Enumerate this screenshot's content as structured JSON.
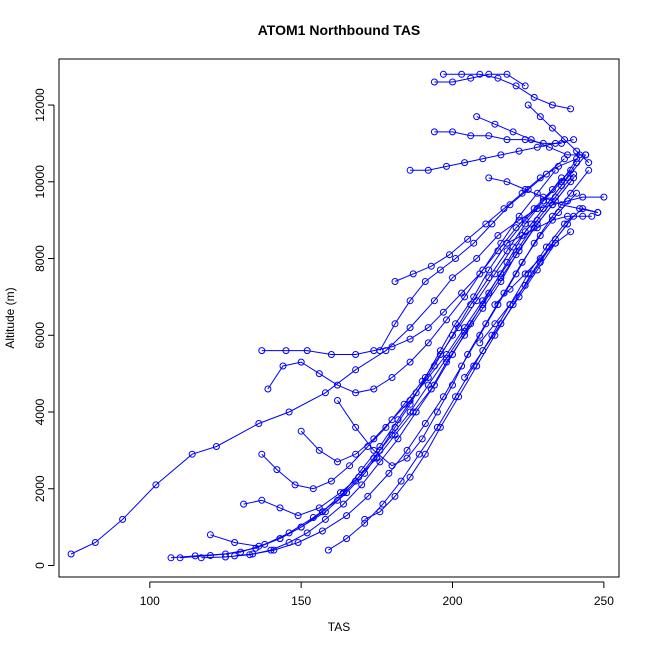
{
  "chart_data": {
    "type": "line",
    "title": "ATOM1 Northbound TAS",
    "xlabel": "TAS",
    "ylabel": "Altitude (m)",
    "xlim": [
      70,
      255
    ],
    "ylim": [
      -300,
      13200
    ],
    "x_ticks": [
      100,
      150,
      200,
      250
    ],
    "y_ticks": [
      0,
      2000,
      4000,
      6000,
      8000,
      10000,
      12000
    ],
    "grid": false,
    "legend": "none",
    "markers": "open-circle",
    "colors": {
      "series": "#0000ff",
      "axis": "#000000"
    },
    "series": [
      {
        "x": [
          74,
          82,
          91,
          102,
          114,
          122,
          136,
          146,
          158,
          168,
          178,
          186,
          194,
          200,
          208,
          215,
          222,
          228,
          233,
          238,
          243,
          250
        ],
        "y": [
          300,
          600,
          1200,
          2100,
          2900,
          3100,
          3700,
          4000,
          4500,
          5100,
          5600,
          6200,
          6900,
          7500,
          8000,
          8600,
          9000,
          9300,
          9400,
          9500,
          9600,
          9600
        ]
      },
      {
        "x": [
          107,
          115,
          125,
          135,
          143,
          150,
          158,
          165,
          171,
          176,
          181,
          186,
          191,
          196,
          201,
          207,
          212,
          218,
          224,
          230,
          236,
          242
        ],
        "y": [
          200,
          250,
          300,
          450,
          700,
          1000,
          1400,
          1900,
          2400,
          3000,
          3600,
          4200,
          4900,
          5600,
          6300,
          7000,
          7700,
          8400,
          9000,
          9500,
          10000,
          10700
        ]
      },
      {
        "x": [
          110,
          120,
          130,
          138,
          146,
          154,
          162,
          168,
          174,
          180,
          186,
          192,
          198,
          204,
          210,
          216,
          222,
          228,
          234,
          240
        ],
        "y": [
          200,
          260,
          350,
          550,
          850,
          1250,
          1700,
          2200,
          2800,
          3400,
          4000,
          4700,
          5400,
          6100,
          6800,
          7500,
          8200,
          8900,
          9500,
          10100
        ]
      },
      {
        "x": [
          117,
          125,
          133,
          141,
          149,
          157,
          165,
          172,
          179,
          185,
          191,
          197,
          203,
          209,
          215,
          221,
          227,
          233,
          239,
          245
        ],
        "y": [
          200,
          220,
          280,
          400,
          600,
          900,
          1300,
          1800,
          2400,
          3000,
          3700,
          4400,
          5200,
          6000,
          6800,
          7600,
          8400,
          9100,
          9700,
          10300
        ]
      },
      {
        "x": [
          120,
          128,
          136,
          143,
          150,
          157,
          164,
          170,
          176,
          182,
          188,
          194,
          200,
          206,
          212,
          218,
          224,
          230,
          236
        ],
        "y": [
          800,
          600,
          500,
          700,
          1000,
          1400,
          1900,
          2500,
          3100,
          3800,
          4500,
          5200,
          6000,
          6800,
          7500,
          8200,
          8900,
          9500,
          10100
        ]
      },
      {
        "x": [
          128,
          134,
          140,
          146,
          152,
          158,
          164,
          170,
          176,
          182,
          188,
          194,
          200,
          206,
          212,
          218,
          224,
          230,
          236,
          241
        ],
        "y": [
          250,
          300,
          400,
          600,
          850,
          1200,
          1600,
          2100,
          2700,
          3300,
          4000,
          4700,
          5500,
          6300,
          7100,
          7900,
          8700,
          9300,
          9900,
          10500
        ]
      },
      {
        "x": [
          131,
          137,
          143,
          149,
          156,
          163,
          169,
          175,
          181,
          187,
          193,
          198,
          204,
          210,
          216,
          221,
          227,
          233,
          239
        ],
        "y": [
          1600,
          1700,
          1500,
          1300,
          1500,
          1900,
          2300,
          2800,
          3400,
          4000,
          4600,
          5300,
          6000,
          6700,
          7400,
          8100,
          8800,
          9400,
          10000
        ]
      },
      {
        "x": [
          137,
          142,
          148,
          154,
          160,
          166,
          172,
          178,
          184,
          190,
          196,
          202,
          208,
          214,
          220,
          226,
          232,
          238,
          244
        ],
        "y": [
          2900,
          2500,
          2100,
          2000,
          2200,
          2600,
          3100,
          3600,
          4200,
          4800,
          5500,
          6200,
          6900,
          7600,
          8300,
          8900,
          9500,
          10100,
          10700
        ]
      },
      {
        "x": [
          137,
          145,
          152,
          160,
          168,
          174,
          180,
          186,
          192,
          197,
          203,
          209,
          215,
          221,
          227,
          233,
          239
        ],
        "y": [
          5600,
          5600,
          5600,
          5500,
          5500,
          5600,
          5700,
          5900,
          6200,
          6600,
          7100,
          7600,
          8200,
          8800,
          9300,
          9800,
          10300
        ]
      },
      {
        "x": [
          139,
          144,
          150,
          156,
          162,
          168,
          174,
          180,
          186,
          192,
          198,
          204,
          210,
          216,
          222,
          228,
          234
        ],
        "y": [
          4600,
          5200,
          5300,
          5000,
          4700,
          4500,
          4600,
          4900,
          5300,
          5800,
          6400,
          7000,
          7700,
          8400,
          9100,
          9700,
          10300
        ]
      },
      {
        "x": [
          150,
          156,
          162,
          168,
          174,
          180,
          186,
          192,
          198,
          204,
          210,
          216,
          222,
          228,
          234,
          240
        ],
        "y": [
          3500,
          3000,
          2700,
          2900,
          3300,
          3800,
          4300,
          4900,
          5500,
          6200,
          6900,
          7600,
          8300,
          9000,
          9600,
          10200
        ]
      },
      {
        "x": [
          159,
          165,
          171,
          177,
          183,
          189,
          195,
          201,
          207,
          213,
          219,
          225,
          231,
          237,
          243,
          248
        ],
        "y": [
          400,
          700,
          1100,
          1600,
          2200,
          2900,
          3600,
          4400,
          5200,
          6000,
          6800,
          7600,
          8300,
          8900,
          9300,
          9200
        ]
      },
      {
        "x": [
          162,
          168,
          174,
          180,
          185,
          190,
          195,
          200,
          205,
          211,
          217,
          223,
          229,
          235,
          241
        ],
        "y": [
          4300,
          3600,
          3000,
          2600,
          2800,
          3300,
          4000,
          4700,
          5500,
          6300,
          7100,
          7900,
          8600,
          9200,
          9700
        ]
      },
      {
        "x": [
          171,
          176,
          181,
          186,
          191,
          196,
          202,
          208,
          214,
          220,
          226,
          232,
          238
        ],
        "y": [
          1200,
          1400,
          1800,
          2300,
          2900,
          3600,
          4400,
          5200,
          6000,
          6800,
          7600,
          8300,
          8900
        ]
      },
      {
        "x": [
          176,
          181,
          186,
          191,
          196,
          201,
          207,
          213,
          219,
          225,
          231,
          237
        ],
        "y": [
          5600,
          6300,
          6900,
          7400,
          7700,
          8000,
          8400,
          8900,
          9400,
          9800,
          10200,
          10600
        ]
      },
      {
        "x": [
          181,
          187,
          193,
          199,
          205,
          211,
          217,
          223,
          229,
          235,
          241
        ],
        "y": [
          7400,
          7600,
          7800,
          8100,
          8500,
          8900,
          9300,
          9700,
          10100,
          10400,
          10600
        ]
      },
      {
        "x": [
          186,
          192,
          198,
          204,
          210,
          216,
          222,
          228,
          234,
          240
        ],
        "y": [
          10300,
          10300,
          10400,
          10500,
          10600,
          10700,
          10800,
          10900,
          11000,
          11100
        ]
      },
      {
        "x": [
          194,
          200,
          206,
          212,
          218,
          224,
          230,
          236
        ],
        "y": [
          11300,
          11300,
          11200,
          11200,
          11100,
          11100,
          11000,
          11000
        ]
      },
      {
        "x": [
          194,
          200,
          206,
          212,
          218,
          224
        ],
        "y": [
          12600,
          12600,
          12700,
          12800,
          12800,
          12500
        ]
      },
      {
        "x": [
          197,
          203,
          209,
          215,
          221,
          227,
          233,
          239
        ],
        "y": [
          12800,
          12800,
          12800,
          12700,
          12500,
          12200,
          12000,
          11900
        ]
      },
      {
        "x": [
          208,
          214,
          220,
          226,
          232,
          238,
          244
        ],
        "y": [
          11700,
          11500,
          11300,
          11100,
          10900,
          10700,
          10700
        ]
      },
      {
        "x": [
          212,
          218,
          224,
          230,
          236,
          242,
          248
        ],
        "y": [
          10100,
          10000,
          9800,
          9600,
          9400,
          9300,
          9200
        ]
      },
      {
        "x": [
          218,
          223,
          228,
          233,
          238,
          243,
          246
        ],
        "y": [
          8400,
          8600,
          8800,
          9000,
          9100,
          9100,
          9100
        ]
      },
      {
        "x": [
          214,
          219,
          224,
          229,
          234,
          239
        ],
        "y": [
          6800,
          7200,
          7600,
          8000,
          8400,
          8700
        ]
      },
      {
        "x": [
          209,
          214,
          219,
          224,
          229,
          234,
          240
        ],
        "y": [
          5800,
          6300,
          6800,
          7300,
          7900,
          8500,
          9100
        ]
      },
      {
        "x": [
          204,
          210,
          216,
          222,
          228,
          234
        ],
        "y": [
          4900,
          5600,
          6300,
          7000,
          7700,
          8400
        ]
      },
      {
        "x": [
          225,
          229,
          233,
          237,
          241,
          245
        ],
        "y": [
          12000,
          11700,
          11400,
          11100,
          10800,
          10500
        ]
      }
    ]
  }
}
